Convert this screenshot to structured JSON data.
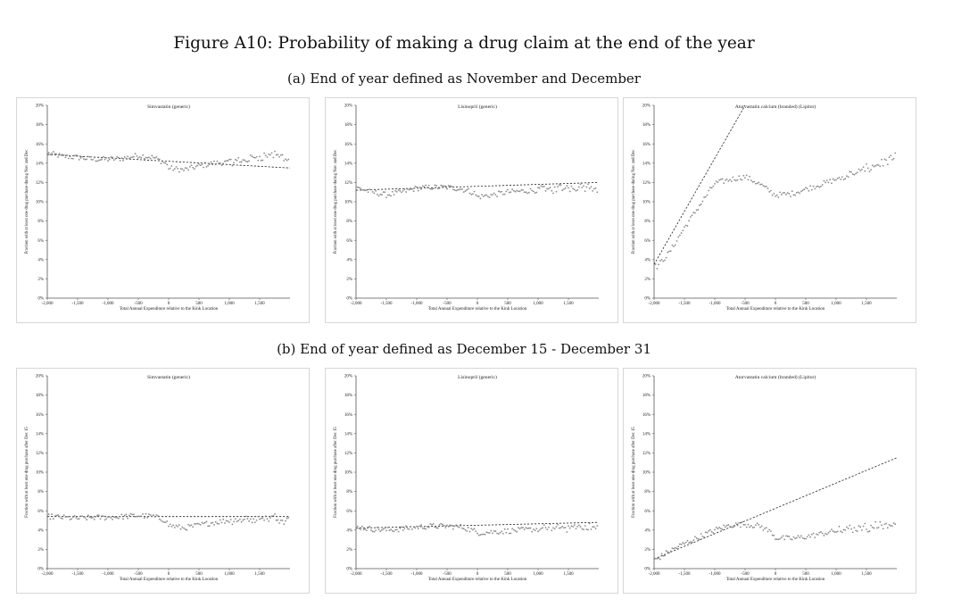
{
  "figure": {
    "title": "Figure A10: Probability of making a drug claim at the end of the year",
    "subtitle_a": "(a) End of year defined as November and December",
    "subtitle_b": "(b) End of year defined as December 15 - December 31"
  },
  "chart_data": [
    {
      "type": "scatter",
      "title": "Simvastatin (generic)",
      "xlabel": "Total Annual Expenditure relative to the Kink Location",
      "ylabel": "Fraction with at least one drug purchase during Nov and Dec",
      "xlim": [
        -2000,
        2000
      ],
      "ylim": [
        0,
        20
      ],
      "x_ticks": [
        "-2,000",
        "-1,500",
        "-1,000",
        "-500",
        "0",
        "500",
        "1,000",
        "1,500"
      ],
      "y_ticks": [
        "0%",
        "2%",
        "4%",
        "6%",
        "8%",
        "10%",
        "12%",
        "14%",
        "16%",
        "18%",
        "20%"
      ],
      "trend_line": {
        "x": [
          -2000,
          2000
        ],
        "y": [
          14.9,
          13.5
        ]
      },
      "series_points": {
        "x": [
          -1950,
          -1750,
          -1500,
          -1250,
          -1000,
          -750,
          -500,
          -250,
          -50,
          0,
          250,
          500,
          750,
          1000,
          1250,
          1500,
          1750,
          1950
        ],
        "y": [
          15.0,
          14.7,
          14.6,
          14.4,
          14.4,
          14.5,
          14.8,
          14.6,
          14.0,
          13.5,
          13.3,
          13.7,
          14.0,
          14.1,
          14.3,
          14.7,
          14.9,
          14.5
        ]
      }
    },
    {
      "type": "scatter",
      "title": "Lisinopril (generic)",
      "xlabel": "Total Annual Expenditure relative to the Kink Location",
      "ylabel": "Fraction with at least one drug purchase during Nov and Dec",
      "xlim": [
        -2000,
        2000
      ],
      "ylim": [
        0,
        20
      ],
      "x_ticks": [
        "-2,000",
        "-1,500",
        "-1,000",
        "-500",
        "0",
        "500",
        "1,000",
        "1,500"
      ],
      "y_ticks": [
        "0%",
        "2%",
        "4%",
        "6%",
        "8%",
        "10%",
        "12%",
        "14%",
        "16%",
        "18%",
        "20%"
      ],
      "trend_line": {
        "x": [
          -2000,
          2000
        ],
        "y": [
          11.2,
          12.0
        ]
      },
      "series_points": {
        "x": [
          -1950,
          -1750,
          -1500,
          -1250,
          -1000,
          -750,
          -500,
          -250,
          -50,
          0,
          250,
          500,
          750,
          1000,
          1250,
          1500,
          1750,
          1950
        ],
        "y": [
          11.4,
          11.0,
          10.7,
          11.0,
          11.4,
          11.5,
          11.5,
          11.3,
          10.9,
          10.5,
          10.7,
          11.0,
          11.1,
          11.2,
          11.3,
          11.5,
          11.6,
          11.5
        ]
      }
    },
    {
      "type": "scatter",
      "title": "Atorvastatin calcium (branded) (Lipitor)",
      "xlabel": "Total Annual Expenditure relative to the Kink Location",
      "ylabel": "Fraction with at least one drug purchase during Nov and Dec",
      "xlim": [
        -2000,
        2000
      ],
      "ylim": [
        0,
        20
      ],
      "x_ticks": [
        "-2,000",
        "-1,500",
        "-1,000",
        "-500",
        "0",
        "500",
        "1,000",
        "1,500"
      ],
      "y_ticks": [
        "0%",
        "2%",
        "4%",
        "6%",
        "8%",
        "10%",
        "12%",
        "14%",
        "16%",
        "18%",
        "20%"
      ],
      "trend_line": {
        "x": [
          -2000,
          -500
        ],
        "y": [
          3.5,
          20.0
        ]
      },
      "series_points": {
        "x": [
          -1950,
          -1750,
          -1500,
          -1250,
          -1000,
          -750,
          -500,
          -250,
          -50,
          0,
          250,
          500,
          750,
          1000,
          1250,
          1500,
          1750,
          1950
        ],
        "y": [
          3.3,
          4.7,
          7.3,
          9.6,
          11.9,
          12.3,
          12.6,
          11.8,
          10.9,
          10.7,
          10.8,
          11.3,
          11.8,
          12.3,
          12.8,
          13.4,
          14.0,
          14.5
        ]
      }
    },
    {
      "type": "scatter",
      "title": "Simvastatin (generic)",
      "xlabel": "Total Annual Expenditure relative to the Kink Location",
      "ylabel": "Fraction with at least one drug purchase after Dec 15",
      "xlim": [
        -2000,
        2000
      ],
      "ylim": [
        0,
        20
      ],
      "x_ticks": [
        "-2,000",
        "-1,500",
        "-1,000",
        "-500",
        "0",
        "500",
        "1,000",
        "1,500"
      ],
      "y_ticks": [
        "0%",
        "2%",
        "4%",
        "6%",
        "8%",
        "10%",
        "12%",
        "14%",
        "16%",
        "18%",
        "20%"
      ],
      "trend_line": {
        "x": [
          -2000,
          2000
        ],
        "y": [
          5.4,
          5.4
        ]
      },
      "series_points": {
        "x": [
          -1950,
          -1750,
          -1500,
          -1250,
          -1000,
          -750,
          -500,
          -250,
          -50,
          0,
          250,
          500,
          750,
          1000,
          1250,
          1500,
          1750,
          1950
        ],
        "y": [
          5.4,
          5.3,
          5.2,
          5.3,
          5.3,
          5.4,
          5.5,
          5.4,
          5.0,
          4.5,
          4.2,
          4.5,
          4.8,
          5.0,
          5.1,
          5.2,
          5.3,
          5.1
        ]
      }
    },
    {
      "type": "scatter",
      "title": "Lisinopril (generic)",
      "xlabel": "Total Annual Expenditure relative to the Kink Location",
      "ylabel": "Fraction with at least one drug purchase after Dec 15",
      "xlim": [
        -2000,
        2000
      ],
      "ylim": [
        0,
        20
      ],
      "x_ticks": [
        "-2,000",
        "-1,500",
        "-1,000",
        "-500",
        "0",
        "500",
        "1,000",
        "1,500"
      ],
      "y_ticks": [
        "0%",
        "2%",
        "4%",
        "6%",
        "8%",
        "10%",
        "12%",
        "14%",
        "16%",
        "18%",
        "20%"
      ],
      "trend_line": {
        "x": [
          -2000,
          2000
        ],
        "y": [
          4.2,
          4.8
        ]
      },
      "series_points": {
        "x": [
          -1950,
          -1750,
          -1500,
          -1250,
          -1000,
          -750,
          -500,
          -250,
          -50,
          0,
          250,
          500,
          750,
          1000,
          1250,
          1500,
          1750,
          1950
        ],
        "y": [
          4.3,
          4.1,
          4.0,
          4.1,
          4.3,
          4.4,
          4.4,
          4.3,
          3.9,
          3.7,
          3.8,
          3.9,
          4.0,
          4.1,
          4.2,
          4.3,
          4.3,
          4.2
        ]
      }
    },
    {
      "type": "scatter",
      "title": "Atorvastatin calcium (branded) (Lipitor)",
      "xlabel": "Total Annual Expenditure relative to the Kink Location",
      "ylabel": "Fraction with at least one drug purchase after Dec 15",
      "xlim": [
        -2000,
        2000
      ],
      "ylim": [
        0,
        20
      ],
      "x_ticks": [
        "-2,000",
        "-1,500",
        "-1,000",
        "-500",
        "0",
        "500",
        "1,000",
        "1,500"
      ],
      "y_ticks": [
        "0%",
        "2%",
        "4%",
        "6%",
        "8%",
        "10%",
        "12%",
        "14%",
        "16%",
        "18%",
        "20%"
      ],
      "trend_line": {
        "x": [
          -2000,
          2000
        ],
        "y": [
          1.0,
          11.5
        ]
      },
      "series_points": {
        "x": [
          -1950,
          -1750,
          -1500,
          -1250,
          -1000,
          -750,
          -500,
          -250,
          -50,
          0,
          250,
          500,
          750,
          1000,
          1250,
          1500,
          1750,
          1950
        ],
        "y": [
          1.0,
          1.8,
          2.6,
          3.3,
          4.0,
          4.5,
          4.6,
          4.4,
          3.7,
          3.2,
          3.1,
          3.3,
          3.6,
          3.9,
          4.1,
          4.3,
          4.5,
          4.6
        ]
      }
    }
  ]
}
